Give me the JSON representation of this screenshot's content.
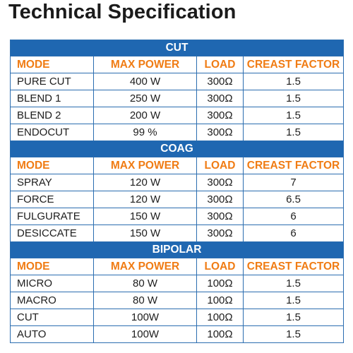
{
  "title": "Technical Specification",
  "columns": [
    "MODE",
    "MAX POWER",
    "LOAD",
    "CREAST FACTOR"
  ],
  "colors": {
    "section_bar": "#1f67b1",
    "header_text": "#f07c14",
    "border": "#2b6db0"
  },
  "sections": [
    {
      "name": "CUT",
      "rows": [
        [
          "PURE CUT",
          "400 W",
          "300Ω",
          "1.5"
        ],
        [
          "BLEND 1",
          "250 W",
          "300Ω",
          "1.5"
        ],
        [
          "BLEND 2",
          "200 W",
          "300Ω",
          "1.5"
        ],
        [
          "ENDOCUT",
          "99 %",
          "300Ω",
          "1.5"
        ]
      ]
    },
    {
      "name": "COAG",
      "rows": [
        [
          "SPRAY",
          "120 W",
          "300Ω",
          "7"
        ],
        [
          "FORCE",
          "120 W",
          "300Ω",
          "6.5"
        ],
        [
          "FULGURATE",
          "150 W",
          "300Ω",
          "6"
        ],
        [
          "DESICCATE",
          "150 W",
          "300Ω",
          "6"
        ]
      ]
    },
    {
      "name": "BIPOLAR",
      "rows": [
        [
          "MICRO",
          "80 W",
          "100Ω",
          "1.5"
        ],
        [
          "MACRO",
          "80 W",
          "100Ω",
          "1.5"
        ],
        [
          "CUT",
          "100W",
          "100Ω",
          "1.5"
        ],
        [
          "AUTO",
          "100W",
          "100Ω",
          "1.5"
        ]
      ]
    }
  ]
}
